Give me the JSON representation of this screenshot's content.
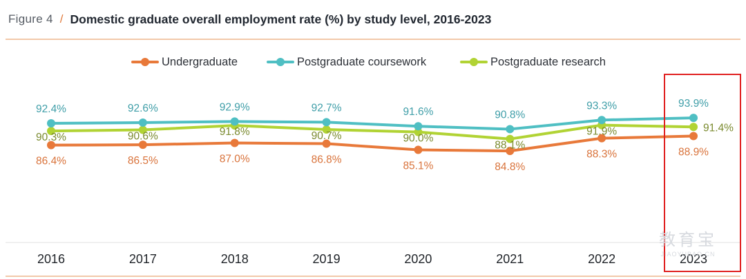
{
  "figure": {
    "label": "Figure 4",
    "separator": "/",
    "title": "Domestic graduate overall employment rate (%) by study level, 2016-2023"
  },
  "chart_data": {
    "type": "line",
    "title": "Domestic graduate overall employment rate (%) by study level, 2016-2023",
    "xlabel": "",
    "ylabel": "",
    "categories": [
      "2016",
      "2017",
      "2018",
      "2019",
      "2020",
      "2021",
      "2022",
      "2023"
    ],
    "ylim": [
      60,
      96
    ],
    "grid": false,
    "legend_position": "top-center",
    "highlight_category": "2023",
    "series": [
      {
        "name": "Undergraduate",
        "color": "#e8793a",
        "label_color": "#d9733b",
        "values": [
          86.4,
          86.5,
          87.0,
          86.8,
          85.1,
          84.8,
          88.3,
          88.9
        ],
        "labels": [
          "86.4%",
          "86.5%",
          "87.0%",
          "86.8%",
          "85.1%",
          "84.8%",
          "88.3%",
          "88.9%"
        ]
      },
      {
        "name": "Postgraduate coursework",
        "color": "#4fbfc3",
        "label_color": "#3f9ea8",
        "values": [
          92.4,
          92.6,
          92.9,
          92.7,
          91.6,
          90.8,
          93.3,
          93.9
        ],
        "labels": [
          "92.4%",
          "92.6%",
          "92.9%",
          "92.7%",
          "91.6%",
          "90.8%",
          "93.3%",
          "93.9%"
        ]
      },
      {
        "name": "Postgraduate research",
        "color": "#b1d334",
        "label_color": "#7a8a2e",
        "values": [
          90.3,
          90.6,
          91.8,
          90.7,
          90.0,
          88.1,
          91.9,
          91.4
        ],
        "labels": [
          "90.3%",
          "90.6%",
          "91.8%",
          "90.7%",
          "90.0%",
          "88.1%",
          "91.9%",
          "91.4%"
        ]
      }
    ]
  },
  "watermark": {
    "icon": "教育宝",
    "text": "JIAOYUBAO.CN"
  },
  "colors": {
    "rule": "#f2c8a8",
    "highlight_box": "#e02020",
    "axis": "#e6e6e6"
  }
}
